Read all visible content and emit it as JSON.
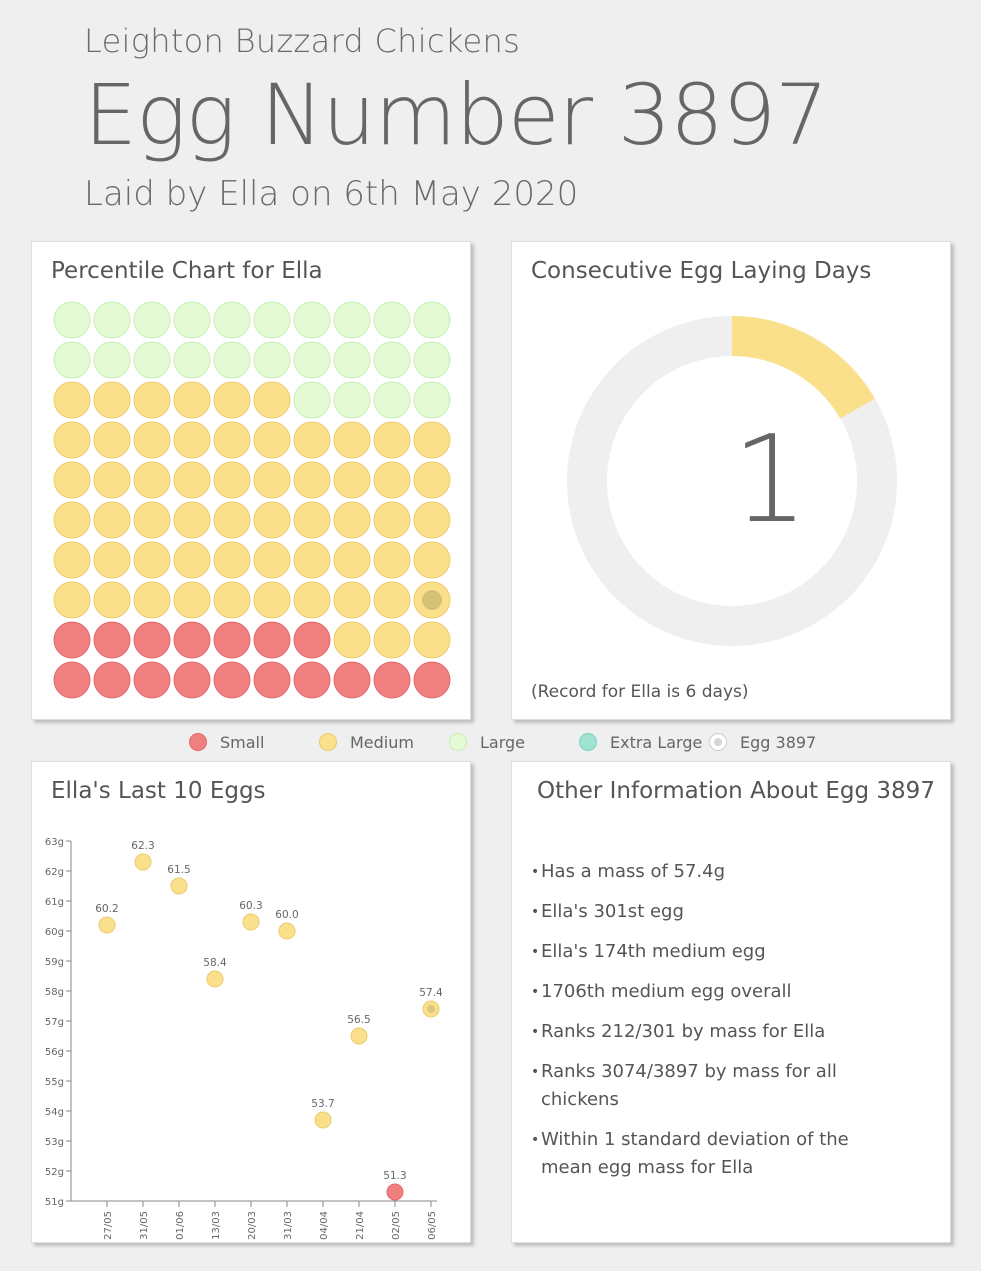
{
  "header": {
    "site_name": "Leighton Buzzard Chickens",
    "title": "Egg Number 3897",
    "subtitle": "Laid by Ella on 6th May 2020"
  },
  "colors": {
    "small": "#f08080",
    "medium": "#fbe08c",
    "large": "#e3fad4",
    "extra_large": "#9fe3d3",
    "highlight_marker": "#c9b672",
    "ring_track": "#efefef",
    "ring_value": "#fbe08c"
  },
  "percentile_chart": {
    "title": "Percentile Chart for Ella",
    "rows_bottom_to_top": [
      [
        "small",
        "small",
        "small",
        "small",
        "small",
        "small",
        "small",
        "small",
        "small",
        "small"
      ],
      [
        "small",
        "small",
        "small",
        "small",
        "small",
        "small",
        "small",
        "medium",
        "medium",
        "medium"
      ],
      [
        "medium",
        "medium",
        "medium",
        "medium",
        "medium",
        "medium",
        "medium",
        "medium",
        "medium",
        "medium"
      ],
      [
        "medium",
        "medium",
        "medium",
        "medium",
        "medium",
        "medium",
        "medium",
        "medium",
        "medium",
        "medium"
      ],
      [
        "medium",
        "medium",
        "medium",
        "medium",
        "medium",
        "medium",
        "medium",
        "medium",
        "medium",
        "medium"
      ],
      [
        "medium",
        "medium",
        "medium",
        "medium",
        "medium",
        "medium",
        "medium",
        "medium",
        "medium",
        "medium"
      ],
      [
        "medium",
        "medium",
        "medium",
        "medium",
        "medium",
        "medium",
        "medium",
        "medium",
        "medium",
        "medium"
      ],
      [
        "medium",
        "medium",
        "medium",
        "medium",
        "medium",
        "medium",
        "large",
        "large",
        "large",
        "large"
      ],
      [
        "large",
        "large",
        "large",
        "large",
        "large",
        "large",
        "large",
        "large",
        "large",
        "large"
      ],
      [
        "large",
        "large",
        "large",
        "large",
        "large",
        "large",
        "large",
        "large",
        "large",
        "large"
      ]
    ],
    "highlight": {
      "row_from_bottom": 3,
      "column": 10,
      "label": "Egg 3897"
    }
  },
  "consecutive_days": {
    "title": "Consecutive Egg Laying Days",
    "current": "1",
    "current_value": 1,
    "record_value": 6,
    "record_note": "(Record for Ella is 6 days)"
  },
  "legend": [
    {
      "label": "Small",
      "kind": "small"
    },
    {
      "label": "Medium",
      "kind": "medium"
    },
    {
      "label": "Large",
      "kind": "large"
    },
    {
      "label": "Extra Large",
      "kind": "extra_large"
    },
    {
      "label": "Egg 3897",
      "kind": "egg"
    }
  ],
  "chart_data": {
    "type": "scatter",
    "title": "Ella's Last 10 Eggs",
    "categories": [
      "27/05",
      "31/05",
      "01/06",
      "13/03",
      "20/03",
      "31/03",
      "04/04",
      "21/04",
      "02/05",
      "06/05"
    ],
    "values": [
      60.2,
      62.3,
      61.5,
      58.4,
      60.3,
      60.0,
      53.7,
      56.5,
      51.3,
      57.4
    ],
    "labels": [
      "60.2",
      "62.3",
      "61.5",
      "58.4",
      "60.3",
      "60.0",
      "53.7",
      "56.5",
      "51.3",
      "57.4"
    ],
    "sizes": [
      "medium",
      "medium",
      "medium",
      "medium",
      "medium",
      "medium",
      "medium",
      "medium",
      "small",
      "medium"
    ],
    "highlight_index": 9,
    "ylim": [
      51,
      63
    ],
    "yticks": [
      "51g",
      "52g",
      "53g",
      "54g",
      "55g",
      "56g",
      "57g",
      "58g",
      "59g",
      "60g",
      "61g",
      "62g",
      "63g"
    ]
  },
  "other_info": {
    "title": "Other Information About Egg 3897",
    "items": [
      "Has a mass of 57.4g",
      "Ella's 301st egg",
      "Ella's 174th medium egg",
      "1706th medium egg overall",
      "Ranks 212/301 by mass for Ella",
      "Ranks 3074/3897 by mass for all chickens",
      "Within 1 standard deviation of the mean egg mass for Ella"
    ]
  }
}
